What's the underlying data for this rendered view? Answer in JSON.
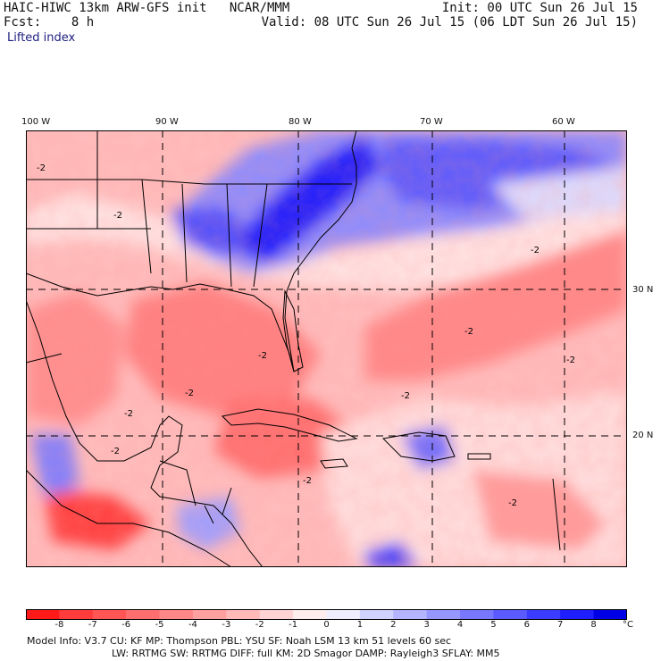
{
  "header": {
    "line1_left": "HAIC-HIWC 13km ARW-GFS init   NCAR/MMM",
    "line2_left": "Fcst:    8 h",
    "line1_right": "Init: 00 UTC Sun 26 Jul 15",
    "line2_right": "Valid: 08 UTC Sun 26 Jul 15 (06 LDT Sun 26 Jul 15)",
    "field": "Lifted index"
  },
  "axes": {
    "lon_labels": [
      "100 W",
      "90 W",
      "80 W",
      "70 W",
      "60 W"
    ],
    "lat_labels": [
      "30 N",
      "20 N"
    ]
  },
  "contour_labels": [
    "-2",
    "-2",
    "-2",
    "-2",
    "-2",
    "-2",
    "-2",
    "-2",
    "-2",
    "-2",
    "-2",
    "-2"
  ],
  "colorbar": {
    "labels": [
      "-8",
      "-7",
      "-6",
      "-5",
      "-4",
      "-3",
      "-2",
      "-1",
      "0",
      "1",
      "2",
      "3",
      "4",
      "5",
      "6",
      "7",
      "8"
    ],
    "unit": "°C",
    "colors": [
      "#ff1a1a",
      "#ff3b3b",
      "#ff5555",
      "#ff6e6e",
      "#ff8787",
      "#ffa0a0",
      "#ffb9b9",
      "#ffd3d3",
      "#ffecec",
      "#eeeeff",
      "#d2d2ff",
      "#b4b4ff",
      "#9696ff",
      "#7878ff",
      "#5a5aff",
      "#3c3cff",
      "#1e1eff",
      "#0000e6"
    ]
  },
  "footer": {
    "line1": "Model Info: V3.7     CU: KF     MP: Thompson     PBL: YSU      SF: Noah LSM     13 km    51 levels   60 sec",
    "line2": "LW: RRTMG    SW: RRTMG   DIFF: full    KM: 2D Smagor DAMP: Rayleigh3   SFLAY: MM5"
  }
}
